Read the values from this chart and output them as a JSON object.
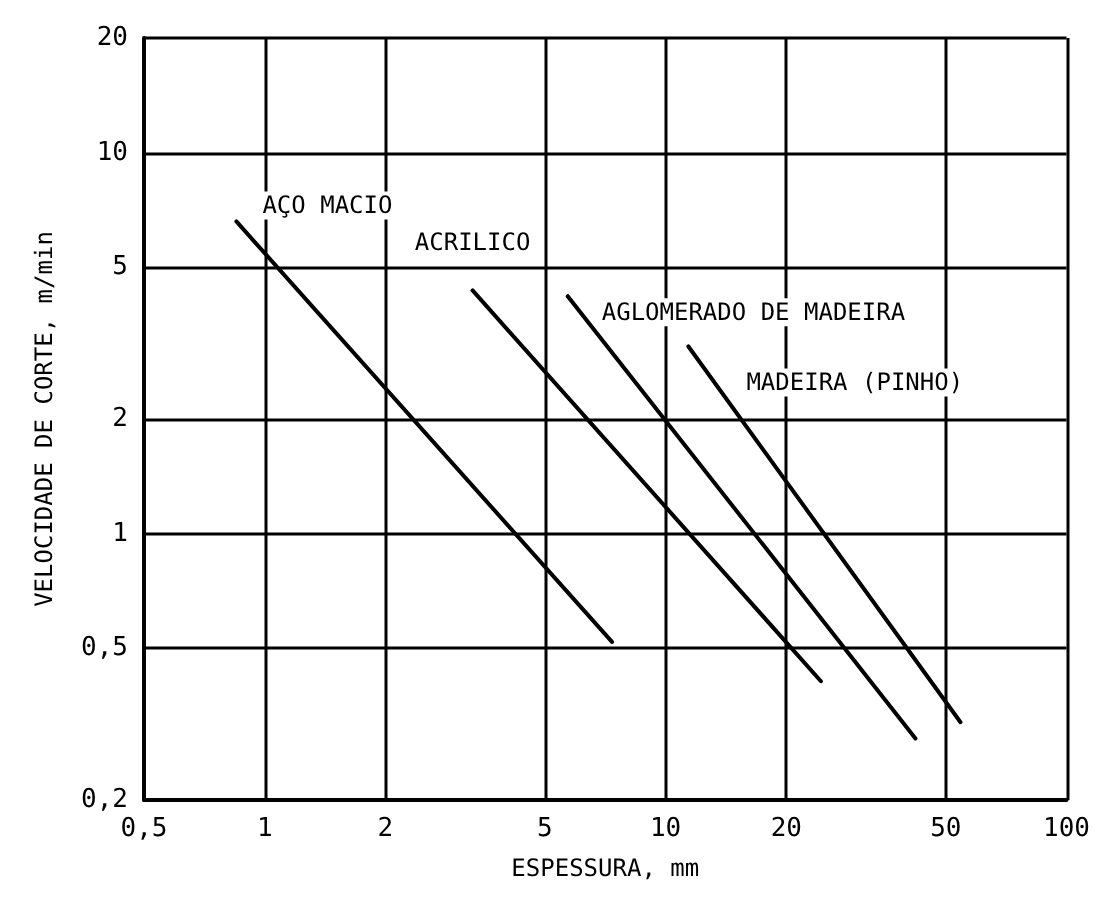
{
  "chart_data": {
    "type": "line",
    "xlabel": "ESPESSURA, mm",
    "ylabel": "VELOCIDADE DE CORTE, m/min",
    "log": "xy",
    "grid": true,
    "legend": false,
    "marker": "none",
    "line_style": "solid",
    "xlim": [
      0.5,
      100
    ],
    "xticks": [
      {
        "value": 0.5,
        "label": "0,5"
      },
      1,
      2,
      5,
      10,
      20,
      50,
      100
    ],
    "ylim": [
      0.2,
      20
    ],
    "yticks": [
      {
        "value": 0.2,
        "label": "0,2"
      },
      {
        "value": 0.5,
        "label": "0,5"
      },
      1,
      2,
      5,
      10,
      20
    ],
    "series": [
      {
        "name": "AÇO MACIO",
        "color": "#000000",
        "x": [
          0.85,
          7.35
        ],
        "values": [
          6.6,
          0.52
        ]
      },
      {
        "name": "ACRILICO",
        "color": "#000000",
        "x": [
          3.3,
          24.4
        ],
        "values": [
          4.35,
          0.41
        ]
      },
      {
        "name": "AGLOMERADO DE MADEIRA",
        "color": "#000000",
        "x": [
          5.7,
          42
        ],
        "values": [
          4.2,
          0.29
        ]
      },
      {
        "name": "MADEIRA (PINHO)",
        "color": "#000000",
        "x": [
          11.4,
          54.4
        ],
        "values": [
          3.1,
          0.32
        ]
      }
    ]
  }
}
